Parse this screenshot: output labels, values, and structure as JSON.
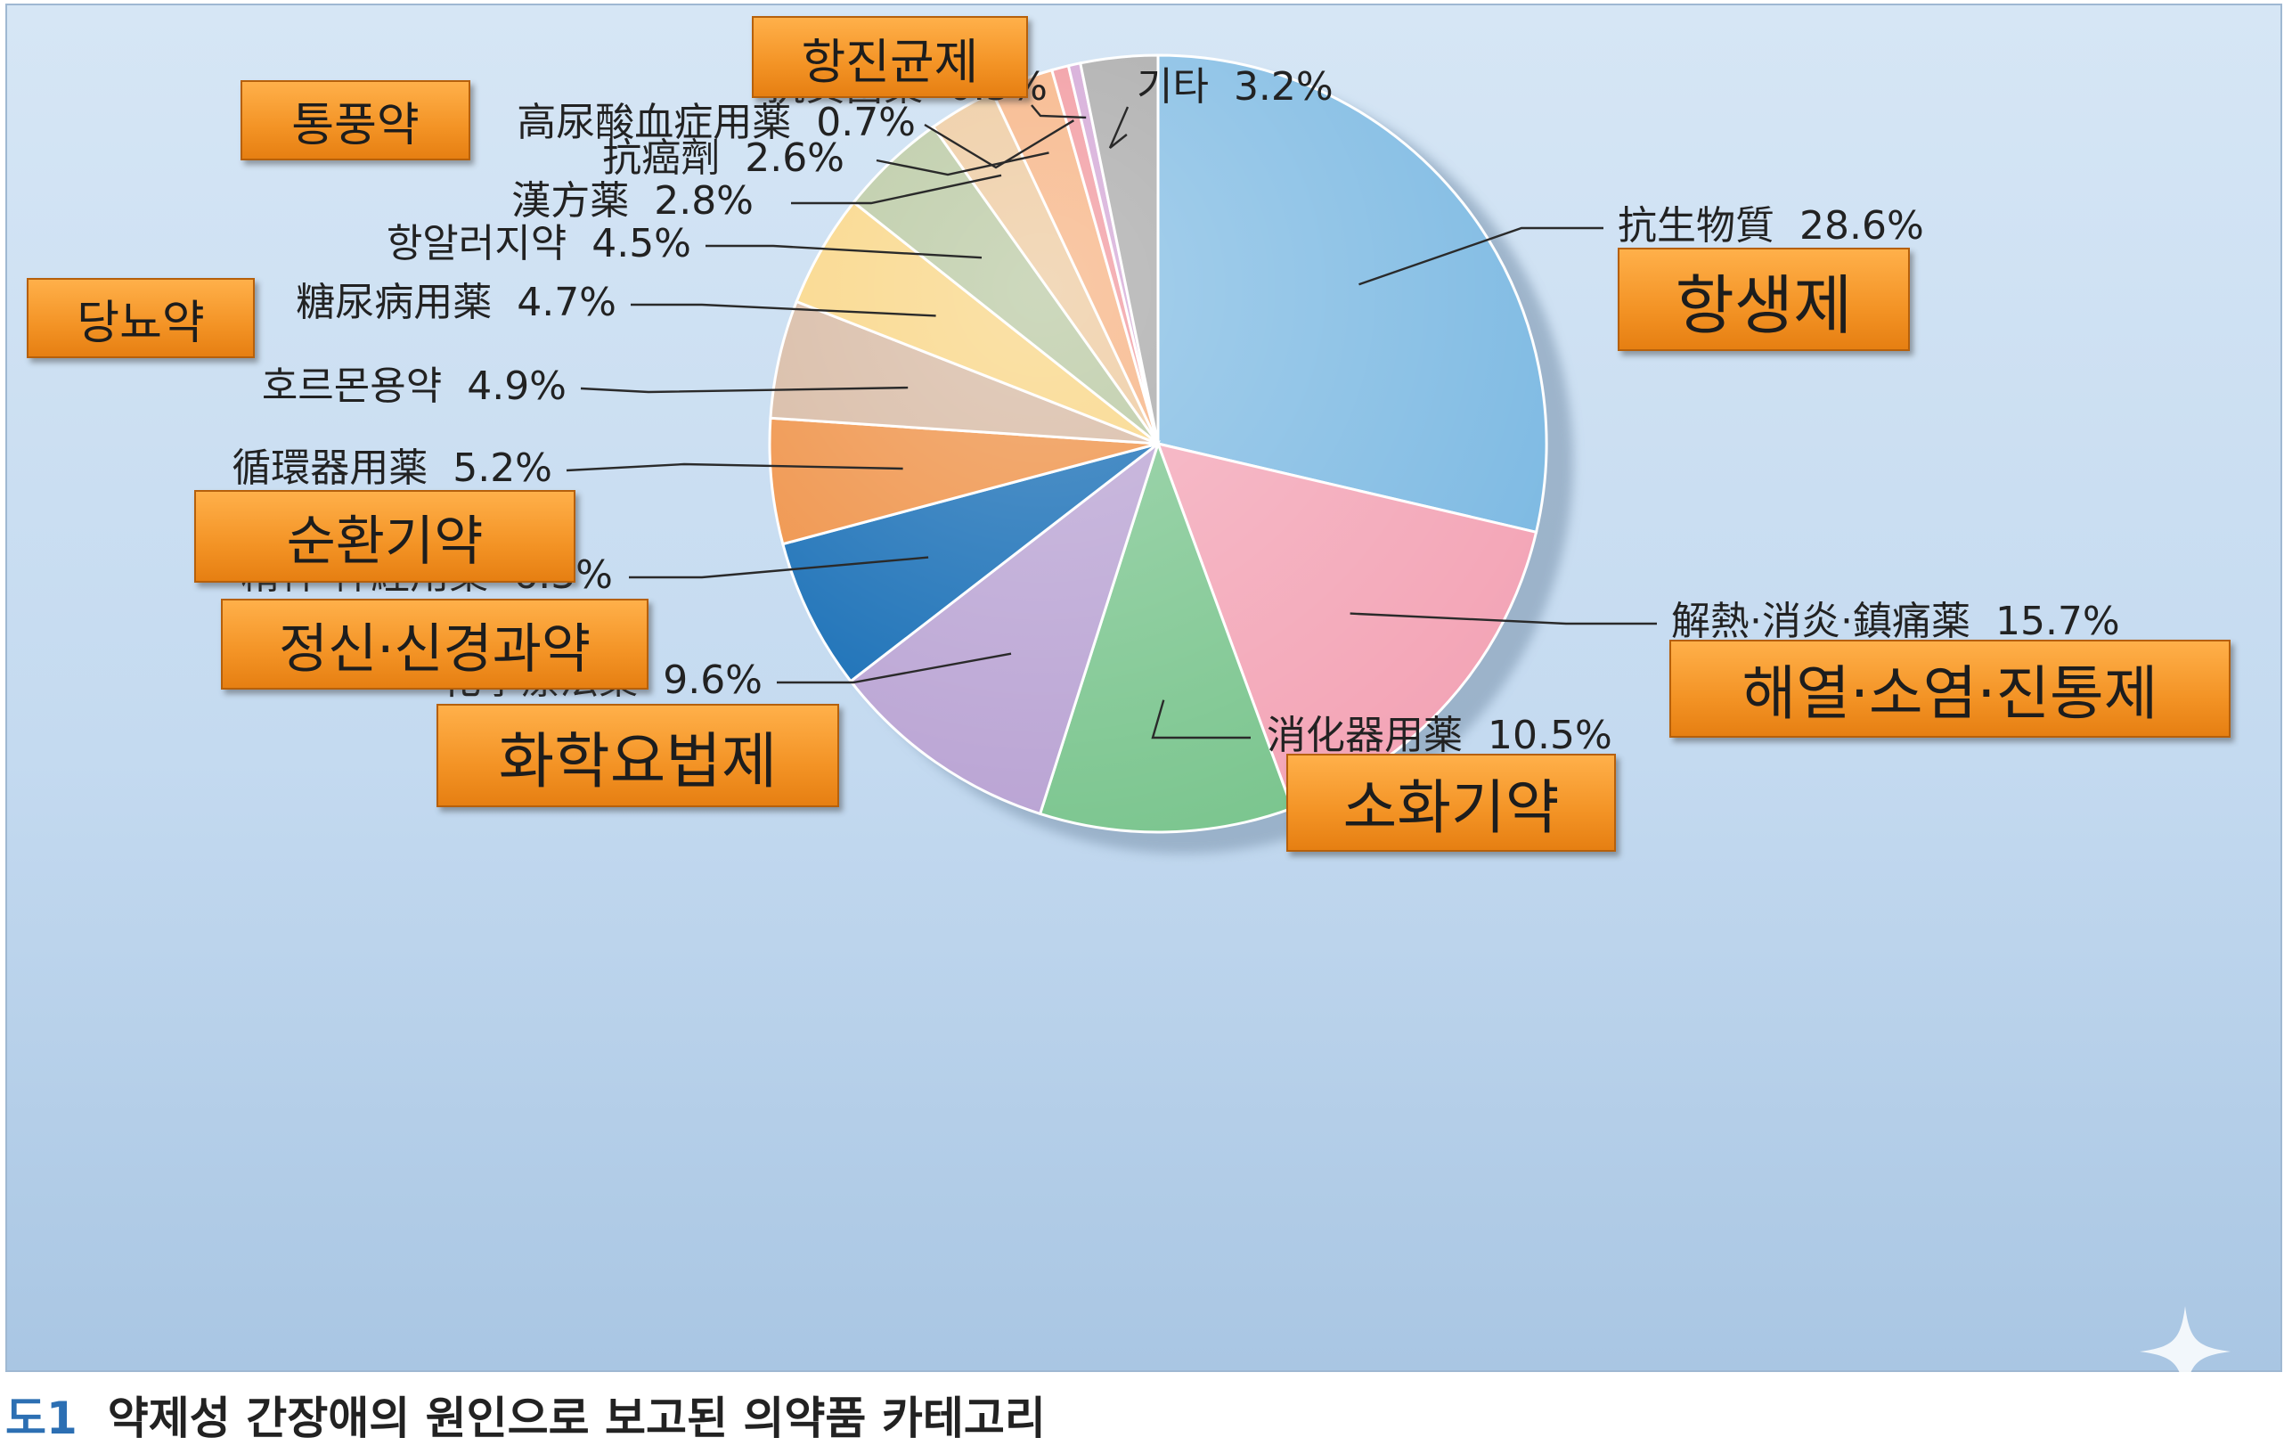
{
  "chart_data": {
    "type": "pie",
    "title": "",
    "start_angle_deg": 0,
    "direction": "clockwise",
    "slices": [
      {
        "label": "抗生物質",
        "value": 28.6,
        "value_label": "28.6%",
        "korean": "항생제",
        "color": "#7ab8e2"
      },
      {
        "label": "解熱·消炎·鎮痛薬",
        "value": 15.7,
        "value_label": "15.7%",
        "korean": "해열·소염·진통제",
        "color": "#f3a3b5"
      },
      {
        "label": "消化器用薬",
        "value": 10.5,
        "value_label": "10.5%",
        "korean": "소화기약",
        "color": "#78c48c"
      },
      {
        "label": "化學療法薬",
        "value": 9.6,
        "value_label": "9.6%",
        "korean": "화학요법제",
        "color": "#b7a0d2"
      },
      {
        "label": "精神·神經用薬",
        "value": 6.3,
        "value_label": "6.3%",
        "korean": "정신·신경과약",
        "color": "#0a66b2"
      },
      {
        "label": "循環器用薬",
        "value": 5.2,
        "value_label": "5.2%",
        "korean": "순환기약",
        "color": "#ee8a3a"
      },
      {
        "label": "호르몬용약",
        "value": 4.9,
        "value_label": "4.9%",
        "korean": "",
        "color": "#d4b49c"
      },
      {
        "label": "糖尿病用薬",
        "value": 4.7,
        "value_label": "4.7%",
        "korean": "당뇨약",
        "color": "#f8d27a"
      },
      {
        "label": "항알러지약",
        "value": 4.5,
        "value_label": "4.5%",
        "korean": "",
        "color": "#b3c49a"
      },
      {
        "label": "漢方薬",
        "value": 2.8,
        "value_label": "2.8%",
        "korean": "",
        "color": "#ecc596"
      },
      {
        "label": "抗癌劑",
        "value": 2.6,
        "value_label": "2.6%",
        "korean": "",
        "color": "#f6ac78"
      },
      {
        "label": "高尿酸血症用薬",
        "value": 0.7,
        "value_label": "0.7%",
        "korean": "통풍약",
        "color": "#f08f96"
      },
      {
        "label": "抗眞菌薬",
        "value": 0.5,
        "value_label": "0.5%",
        "korean": "항진균제",
        "color": "#cf9fd2"
      },
      {
        "label": "기타",
        "value": 3.2,
        "value_label": "3.2%",
        "korean": "",
        "color": "#a3a3a3"
      }
    ]
  },
  "caption": {
    "label": "도1",
    "text": "약제성 간장애의 원인으로 보고된 의약품 카테고리"
  }
}
